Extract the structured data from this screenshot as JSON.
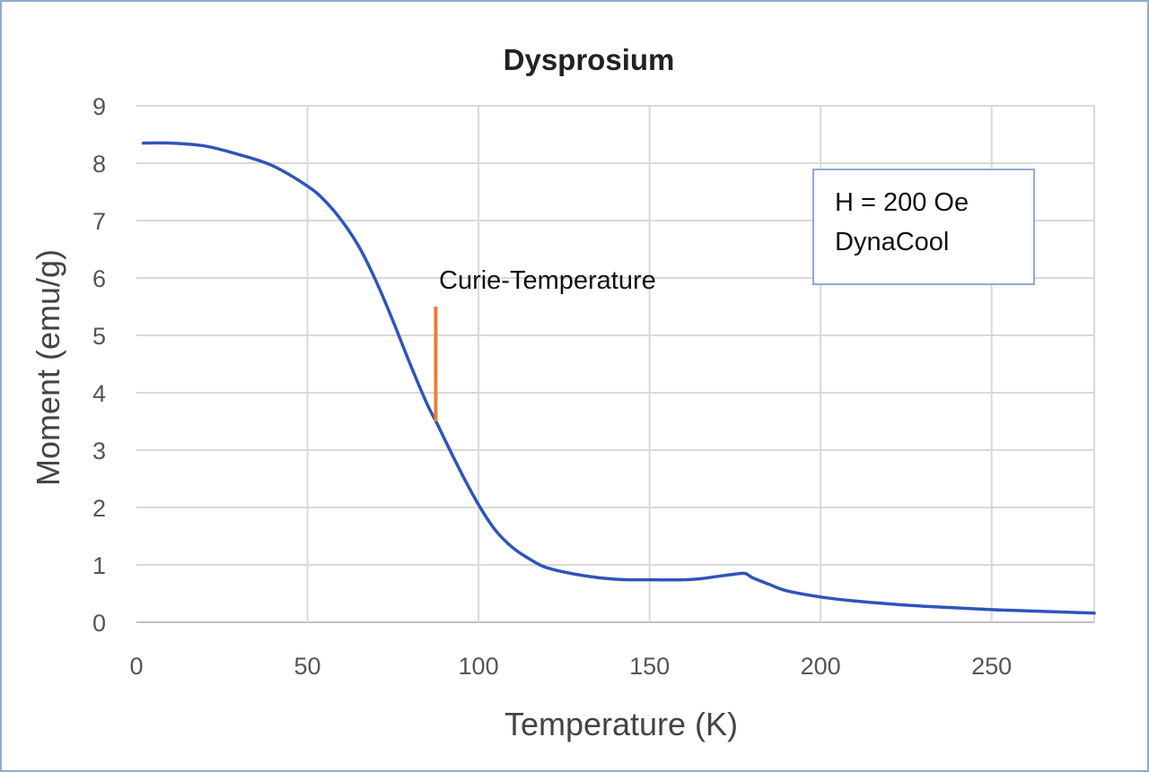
{
  "chart_data": {
    "type": "line",
    "title": "Dysprosium",
    "xlabel": "Temperature (K)",
    "ylabel": "Moment (emu/g)",
    "xlim": [
      0,
      280
    ],
    "ylim": [
      0,
      9
    ],
    "xticks": [
      0,
      50,
      100,
      150,
      200,
      250
    ],
    "yticks": [
      0,
      1,
      2,
      3,
      4,
      5,
      6,
      7,
      8,
      9
    ],
    "grid": true,
    "series": [
      {
        "color": "#2e55b8",
        "x": [
          2,
          10,
          20,
          30,
          40,
          50,
          55,
          60,
          65,
          70,
          75,
          80,
          85,
          88,
          90,
          95,
          100,
          105,
          110,
          115,
          120,
          130,
          140,
          150,
          160,
          165,
          170,
          175,
          178,
          180,
          185,
          190,
          200,
          210,
          220,
          230,
          240,
          250,
          260,
          270,
          280
        ],
        "y": [
          8.35,
          8.35,
          8.3,
          8.15,
          7.95,
          7.6,
          7.35,
          7.0,
          6.55,
          5.95,
          5.25,
          4.5,
          3.8,
          3.45,
          3.2,
          2.6,
          2.05,
          1.6,
          1.3,
          1.1,
          0.95,
          0.82,
          0.75,
          0.74,
          0.74,
          0.76,
          0.8,
          0.84,
          0.85,
          0.78,
          0.66,
          0.55,
          0.44,
          0.37,
          0.32,
          0.28,
          0.25,
          0.22,
          0.2,
          0.18,
          0.16
        ]
      }
    ],
    "annotations": {
      "curie_label": "Curie-Temperature",
      "curie_marker": {
        "x": 87.5,
        "y_from": 3.5,
        "y_to": 5.5,
        "color": "#ed7d31"
      },
      "legend_box_lines": [
        "H = 200 Oe",
        "DynaCool"
      ],
      "legend_box_border_color": "#8fa9d8",
      "legend_box_placement": "top-right"
    }
  }
}
